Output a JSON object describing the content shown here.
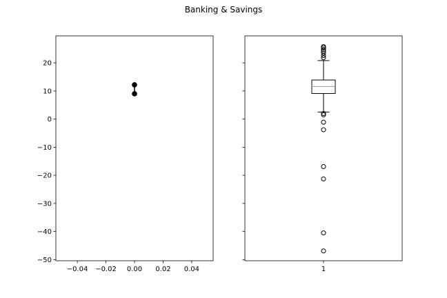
{
  "figure": {
    "title": "Banking & Savings"
  },
  "chart_data": [
    {
      "type": "scatter",
      "title": "",
      "xlabel": "",
      "ylabel": "",
      "xlim": [
        -0.055,
        0.055
      ],
      "ylim": [
        -50.4,
        29.6
      ],
      "x_ticks": [
        -0.04,
        -0.02,
        0.0,
        0.02,
        0.04
      ],
      "x_tick_labels": [
        "−0.04",
        "−0.02",
        "0.00",
        "0.02",
        "0.04"
      ],
      "y_ticks": [
        20,
        10,
        0,
        -10,
        -20,
        -30,
        -40,
        -50
      ],
      "y_tick_labels": [
        "20",
        "10",
        "0",
        "−10",
        "−20",
        "−30",
        "−40",
        "−50"
      ],
      "points": [
        {
          "x": 0.0,
          "y": 12.2
        },
        {
          "x": 0.0,
          "y": 9.0
        }
      ],
      "connected": true,
      "marker": "filled-circle",
      "color": "#000000",
      "grid": false
    },
    {
      "type": "box",
      "title": "",
      "xlabel": "",
      "ylabel": "",
      "shared_y_with": 0,
      "ylim": [
        -50.4,
        29.6
      ],
      "categories": [
        "1"
      ],
      "box": {
        "q1": 9.1,
        "median": 11.6,
        "q3": 13.9,
        "whisker_low": 2.5,
        "whisker_high": 20.8,
        "outliers": [
          25.8,
          25.4,
          24.8,
          24.2,
          23.5,
          22.6,
          21.8,
          2.0,
          1.5,
          -1.1,
          -3.8,
          -16.9,
          -21.3,
          -40.5,
          -46.9
        ]
      },
      "median_color": "#ff7f0e",
      "grid": false
    }
  ]
}
